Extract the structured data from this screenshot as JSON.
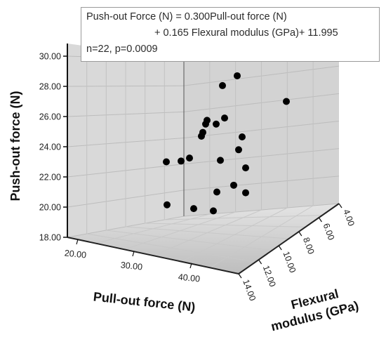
{
  "chart_data": {
    "type": "scatter",
    "title": "",
    "equation": {
      "line1": "Push-out Force (N) = 0.300Pull-out force (N)",
      "line2": "+ 0.165 Flexural modulus (GPa)+ 11.995",
      "line3": "n=22, p=0.0009"
    },
    "zlabel": "Push-out force (N)",
    "xlabel": "Pull-out force (N)",
    "ylabel_line1": "Flexural",
    "ylabel_line2": "modulus (GPa)",
    "z_ticks": [
      "18.00",
      "20.00",
      "22.00",
      "24.00",
      "26.00",
      "28.00",
      "30.00"
    ],
    "x_ticks": [
      "20.00",
      "30.00",
      "40.00"
    ],
    "y_ticks": [
      "4.00",
      "6.00",
      "8.00",
      "10.00",
      "12.00",
      "14.00"
    ],
    "zlim": [
      18,
      30
    ],
    "grid": true,
    "marker_color": "#000000",
    "pane_color": "#d9d9d9",
    "points": [
      {
        "z": 28.7
      },
      {
        "z": 28.05
      },
      {
        "z": 27.0
      },
      {
        "z": 25.9
      },
      {
        "z": 25.75
      },
      {
        "z": 25.5
      },
      {
        "z": 25.5
      },
      {
        "z": 24.95
      },
      {
        "z": 24.7
      },
      {
        "z": 24.65
      },
      {
        "z": 23.8
      },
      {
        "z": 23.25
      },
      {
        "z": 23.1
      },
      {
        "z": 23.05
      },
      {
        "z": 23.0
      },
      {
        "z": 22.6
      },
      {
        "z": 21.45
      },
      {
        "z": 21.0
      },
      {
        "z": 20.95
      },
      {
        "z": 20.15
      },
      {
        "z": 19.9
      },
      {
        "z": 19.75
      }
    ]
  }
}
